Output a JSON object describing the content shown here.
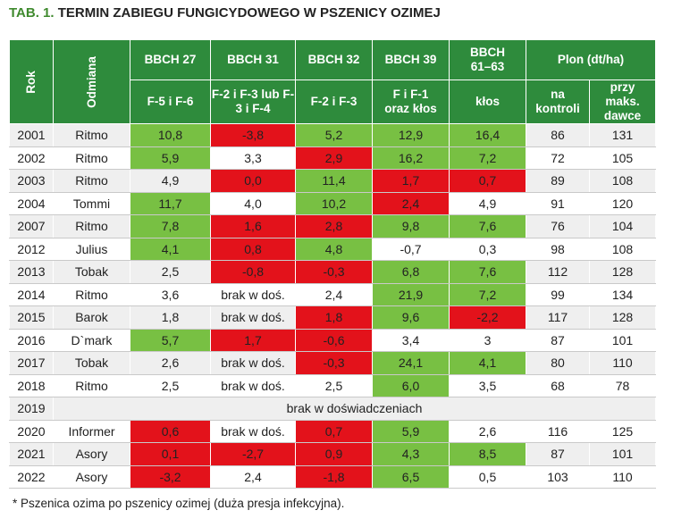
{
  "title": {
    "prefix": "TAB. 1.",
    "text": "TERMIN ZABIEGU FUNGICYDOWEGO W PSZENICY OZIMEJ"
  },
  "headers": {
    "rok": "Rok",
    "odmiana": "Odmiana",
    "b27": "BBCH 27",
    "b31": "BBCH 31",
    "b32": "BBCH 32",
    "b39": "BBCH 39",
    "b61": "BBCH 61–63",
    "plon": "Plon (dt/ha)",
    "b27_sub": "F-5 i F-6",
    "b31_sub": "F-2 i F-3 lub F-3 i F-4",
    "b32_sub": "F-2 i F-3",
    "b39_sub": "F i F-1 oraz kłos",
    "b61_sub": "kłos",
    "plon_kontrola": "na kontroli",
    "plon_maks": "przy maks. dawce"
  },
  "colors": {
    "header_green": "#2e8b3c",
    "positive_green": "#78c043",
    "negative_red": "#e3121b",
    "title_green": "#3f8a2e"
  },
  "rows": [
    {
      "rok": "2001",
      "odmiana": "Ritmo",
      "b27": "10,8",
      "b27c": "g",
      "b31": "-3,8",
      "b31c": "r",
      "b32": "5,2",
      "b32c": "g",
      "b39": "12,9",
      "b39c": "g",
      "b61": "16,4",
      "b61c": "g",
      "kontrola": "86",
      "maks": "131"
    },
    {
      "rok": "2002",
      "odmiana": "Ritmo",
      "b27": "5,9",
      "b27c": "g",
      "b31": "3,3",
      "b31c": "",
      "b32": "2,9",
      "b32c": "r",
      "b39": "16,2",
      "b39c": "g",
      "b61": "7,2",
      "b61c": "g",
      "kontrola": "72",
      "maks": "105"
    },
    {
      "rok": "2003",
      "odmiana": "Ritmo",
      "b27": "4,9",
      "b27c": "",
      "b31": "0,0",
      "b31c": "r",
      "b32": "11,4",
      "b32c": "g",
      "b39": "1,7",
      "b39c": "r",
      "b61": "0,7",
      "b61c": "r",
      "kontrola": "89",
      "maks": "108"
    },
    {
      "rok": "2004",
      "odmiana": "Tommi",
      "b27": "11,7",
      "b27c": "g",
      "b31": "4,0",
      "b31c": "",
      "b32": "10,2",
      "b32c": "g",
      "b39": "2,4",
      "b39c": "r",
      "b61": "4,9",
      "b61c": "",
      "kontrola": "91",
      "maks": "120"
    },
    {
      "rok": "2007",
      "odmiana": "Ritmo",
      "b27": "7,8",
      "b27c": "g",
      "b31": "1,6",
      "b31c": "r",
      "b32": "2,8",
      "b32c": "r",
      "b39": "9,8",
      "b39c": "g",
      "b61": "7,6",
      "b61c": "g",
      "kontrola": "76",
      "maks": "104"
    },
    {
      "rok": "2012",
      "odmiana": "Julius",
      "b27": "4,1",
      "b27c": "g",
      "b31": "0,8",
      "b31c": "r",
      "b32": "4,8",
      "b32c": "g",
      "b39": "-0,7",
      "b39c": "",
      "b61": "0,3",
      "b61c": "",
      "kontrola": "98",
      "maks": "108"
    },
    {
      "rok": "2013",
      "odmiana": "Tobak",
      "b27": "2,5",
      "b27c": "",
      "b31": "-0,8",
      "b31c": "r",
      "b32": "-0,3",
      "b32c": "r",
      "b39": "6,8",
      "b39c": "g",
      "b61": "7,6",
      "b61c": "g",
      "kontrola": "112",
      "maks": "128"
    },
    {
      "rok": "2014",
      "odmiana": "Ritmo",
      "b27": "3,6",
      "b27c": "",
      "b31": "brak w doś.",
      "b31c": "",
      "b32": "2,4",
      "b32c": "",
      "b39": "21,9",
      "b39c": "g",
      "b61": "7,2",
      "b61c": "g",
      "kontrola": "99",
      "maks": "134"
    },
    {
      "rok": "2015",
      "odmiana": "Barok",
      "b27": "1,8",
      "b27c": "",
      "b31": "brak w doś.",
      "b31c": "",
      "b32": "1,8",
      "b32c": "r",
      "b39": "9,6",
      "b39c": "g",
      "b61": "-2,2",
      "b61c": "r",
      "kontrola": "117",
      "maks": "128"
    },
    {
      "rok": "2016",
      "odmiana": "D`mark",
      "b27": "5,7",
      "b27c": "g",
      "b31": "1,7",
      "b31c": "r",
      "b32": "-0,6",
      "b32c": "r",
      "b39": "3,4",
      "b39c": "",
      "b61": "3",
      "b61c": "",
      "kontrola": "87",
      "maks": "101"
    },
    {
      "rok": "2017",
      "odmiana": "Tobak",
      "b27": "2,6",
      "b27c": "",
      "b31": "brak w doś.",
      "b31c": "",
      "b32": "-0,3",
      "b32c": "r",
      "b39": "24,1",
      "b39c": "g",
      "b61": "4,1",
      "b61c": "g",
      "kontrola": "80",
      "maks": "110"
    },
    {
      "rok": "2018",
      "odmiana": "Ritmo",
      "b27": "2,5",
      "b27c": "",
      "b31": "brak w doś.",
      "b31c": "",
      "b32": "2,5",
      "b32c": "",
      "b39": "6,0",
      "b39c": "g",
      "b61": "3,5",
      "b61c": "",
      "kontrola": "68",
      "maks": "78"
    },
    {
      "rok": "2019",
      "note": "brak w doświadczeniach"
    },
    {
      "rok": "2020",
      "odmiana": "Informer",
      "b27": "0,6",
      "b27c": "r",
      "b31": "brak w doś.",
      "b31c": "",
      "b32": "0,7",
      "b32c": "r",
      "b39": "5,9",
      "b39c": "g",
      "b61": "2,6",
      "b61c": "",
      "kontrola": "116",
      "maks": "125"
    },
    {
      "rok": "2021",
      "odmiana": "Asory",
      "b27": "0,1",
      "b27c": "r",
      "b31": "-2,7",
      "b31c": "r",
      "b32": "0,9",
      "b32c": "r",
      "b39": "4,3",
      "b39c": "g",
      "b61": "8,5",
      "b61c": "g",
      "kontrola": "87",
      "maks": "101"
    },
    {
      "rok": "2022",
      "odmiana": "Asory",
      "b27": "-3,2",
      "b27c": "r",
      "b31": "2,4",
      "b31c": "",
      "b32": "-1,8",
      "b32c": "r",
      "b39": "6,5",
      "b39c": "g",
      "b61": "0,5",
      "b61c": "",
      "kontrola": "103",
      "maks": "110"
    }
  ],
  "footnote": "* Pszenica ozima po pszenicy ozimej (duża presja infekcyjna)."
}
